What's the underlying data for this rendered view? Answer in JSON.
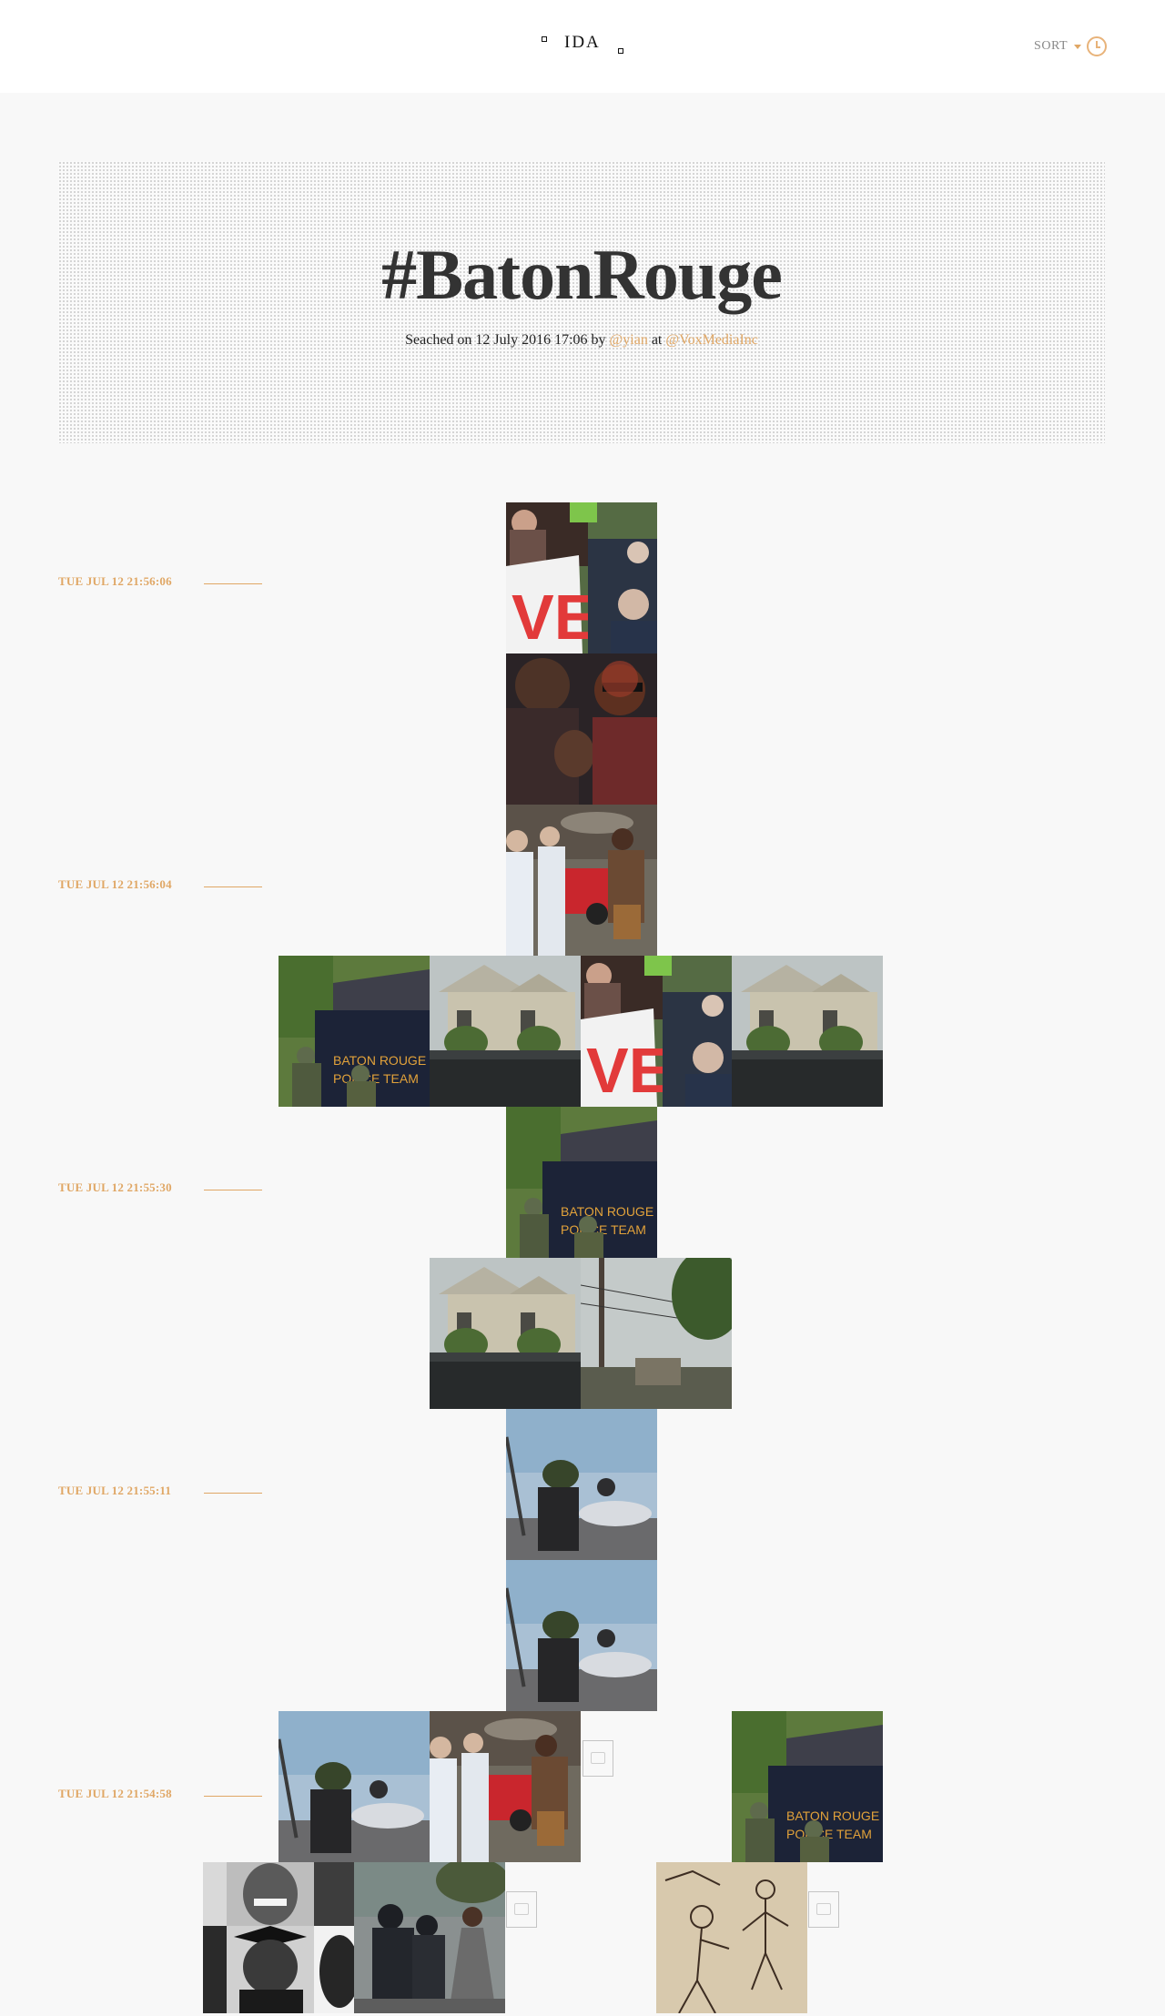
{
  "header": {
    "logo": "IDA",
    "sort_label": "SORT"
  },
  "hero": {
    "title": "#BatonRouge",
    "meta_prefix": "Seached on 12 July 2016 17:06 by ",
    "user_link": "@yian",
    "meta_middle": " at ",
    "org_link": "@VoxMediaInc"
  },
  "timestamps": [
    "TUE JUL 12 21:56:06",
    "TUE JUL 12 21:56:04",
    "TUE JUL 12 21:55:30",
    "TUE JUL 12 21:55:11",
    "TUE JUL 12 21:54:58"
  ],
  "colors": {
    "accent": "#e0a765",
    "background": "#f8f8f8",
    "title": "#333333"
  },
  "photo_scenes": [
    "protest-sign",
    "man-fist",
    "protest-street",
    "police-truck",
    "house-crowd",
    "protest-sign",
    "man-fist-2",
    "house-crowd",
    "police-truck",
    "house-crowd",
    "street-pole",
    "blurry-fight",
    "blurry-fight",
    "blurry-fight",
    "protest-street",
    "broken-image",
    "police-truck",
    "mugshot-collage",
    "police-arrest",
    "broken-image",
    "sketch"
  ]
}
